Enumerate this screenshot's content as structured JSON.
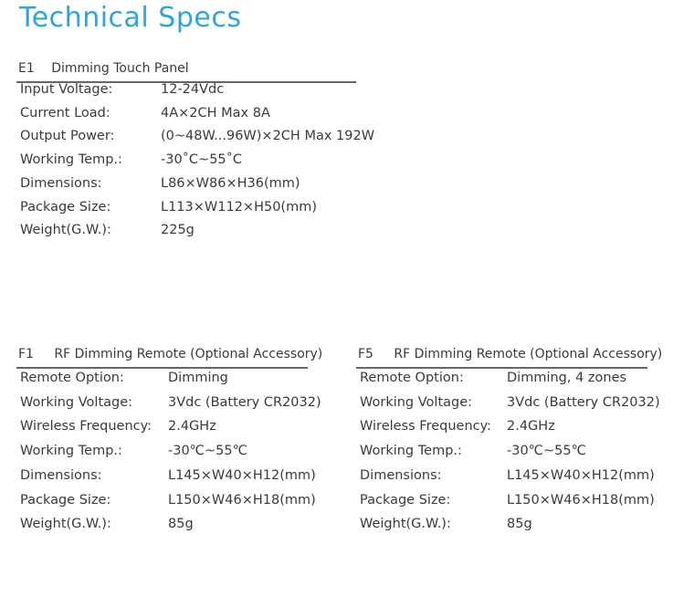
{
  "title": "Technical Specs",
  "sections": [
    {
      "code": "E1",
      "name": "Dimming Touch Panel",
      "rows": [
        {
          "label": "Input Voltage:",
          "value": "12-24Vdc"
        },
        {
          "label": "Current Load:",
          "value": "4A×2CH  Max 8A"
        },
        {
          "label": "Output Power:",
          "value": "(0~48W...96W)×2CH  Max 192W"
        },
        {
          "label": "Working Temp.:",
          "value": "-30˚C~55˚C"
        },
        {
          "label": "Dimensions:",
          "value": "L86×W86×H36(mm)"
        },
        {
          "label": "Package Size:",
          "value": "L113×W112×H50(mm)"
        },
        {
          "label": "Weight(G.W.):",
          "value": "225g"
        }
      ]
    },
    {
      "code": "F1",
      "name": "RF Dimming Remote (Optional Accessory)",
      "rows": [
        {
          "label": "Remote Option:",
          "value": "Dimming"
        },
        {
          "label": "Working Voltage:",
          "value": "3Vdc (Battery CR2032)"
        },
        {
          "label": "Wireless Frequency:",
          "value": "2.4GHz"
        },
        {
          "label": "Working Temp.:",
          "value": "-30℃~55℃"
        },
        {
          "label": "Dimensions:",
          "value": "L145×W40×H12(mm)"
        },
        {
          "label": "Package Size:",
          "value": "L150×W46×H18(mm)"
        },
        {
          "label": "Weight(G.W.):",
          "value": "85g"
        }
      ]
    },
    {
      "code": "F5",
      "name": "RF Dimming Remote (Optional Accessory)",
      "rows": [
        {
          "label": "Remote Option:",
          "value": "Dimming, 4 zones"
        },
        {
          "label": "Working Voltage:",
          "value": "3Vdc (Battery CR2032)"
        },
        {
          "label": "Wireless Frequency:",
          "value": "2.4GHz"
        },
        {
          "label": "Working Temp.:",
          "value": "-30℃~55℃"
        },
        {
          "label": "Dimensions:",
          "value": "L145×W40×H12(mm)"
        },
        {
          "label": "Package Size:",
          "value": "L150×W46×H18(mm)"
        },
        {
          "label": "Weight(G.W.):",
          "value": "85g"
        }
      ]
    }
  ]
}
